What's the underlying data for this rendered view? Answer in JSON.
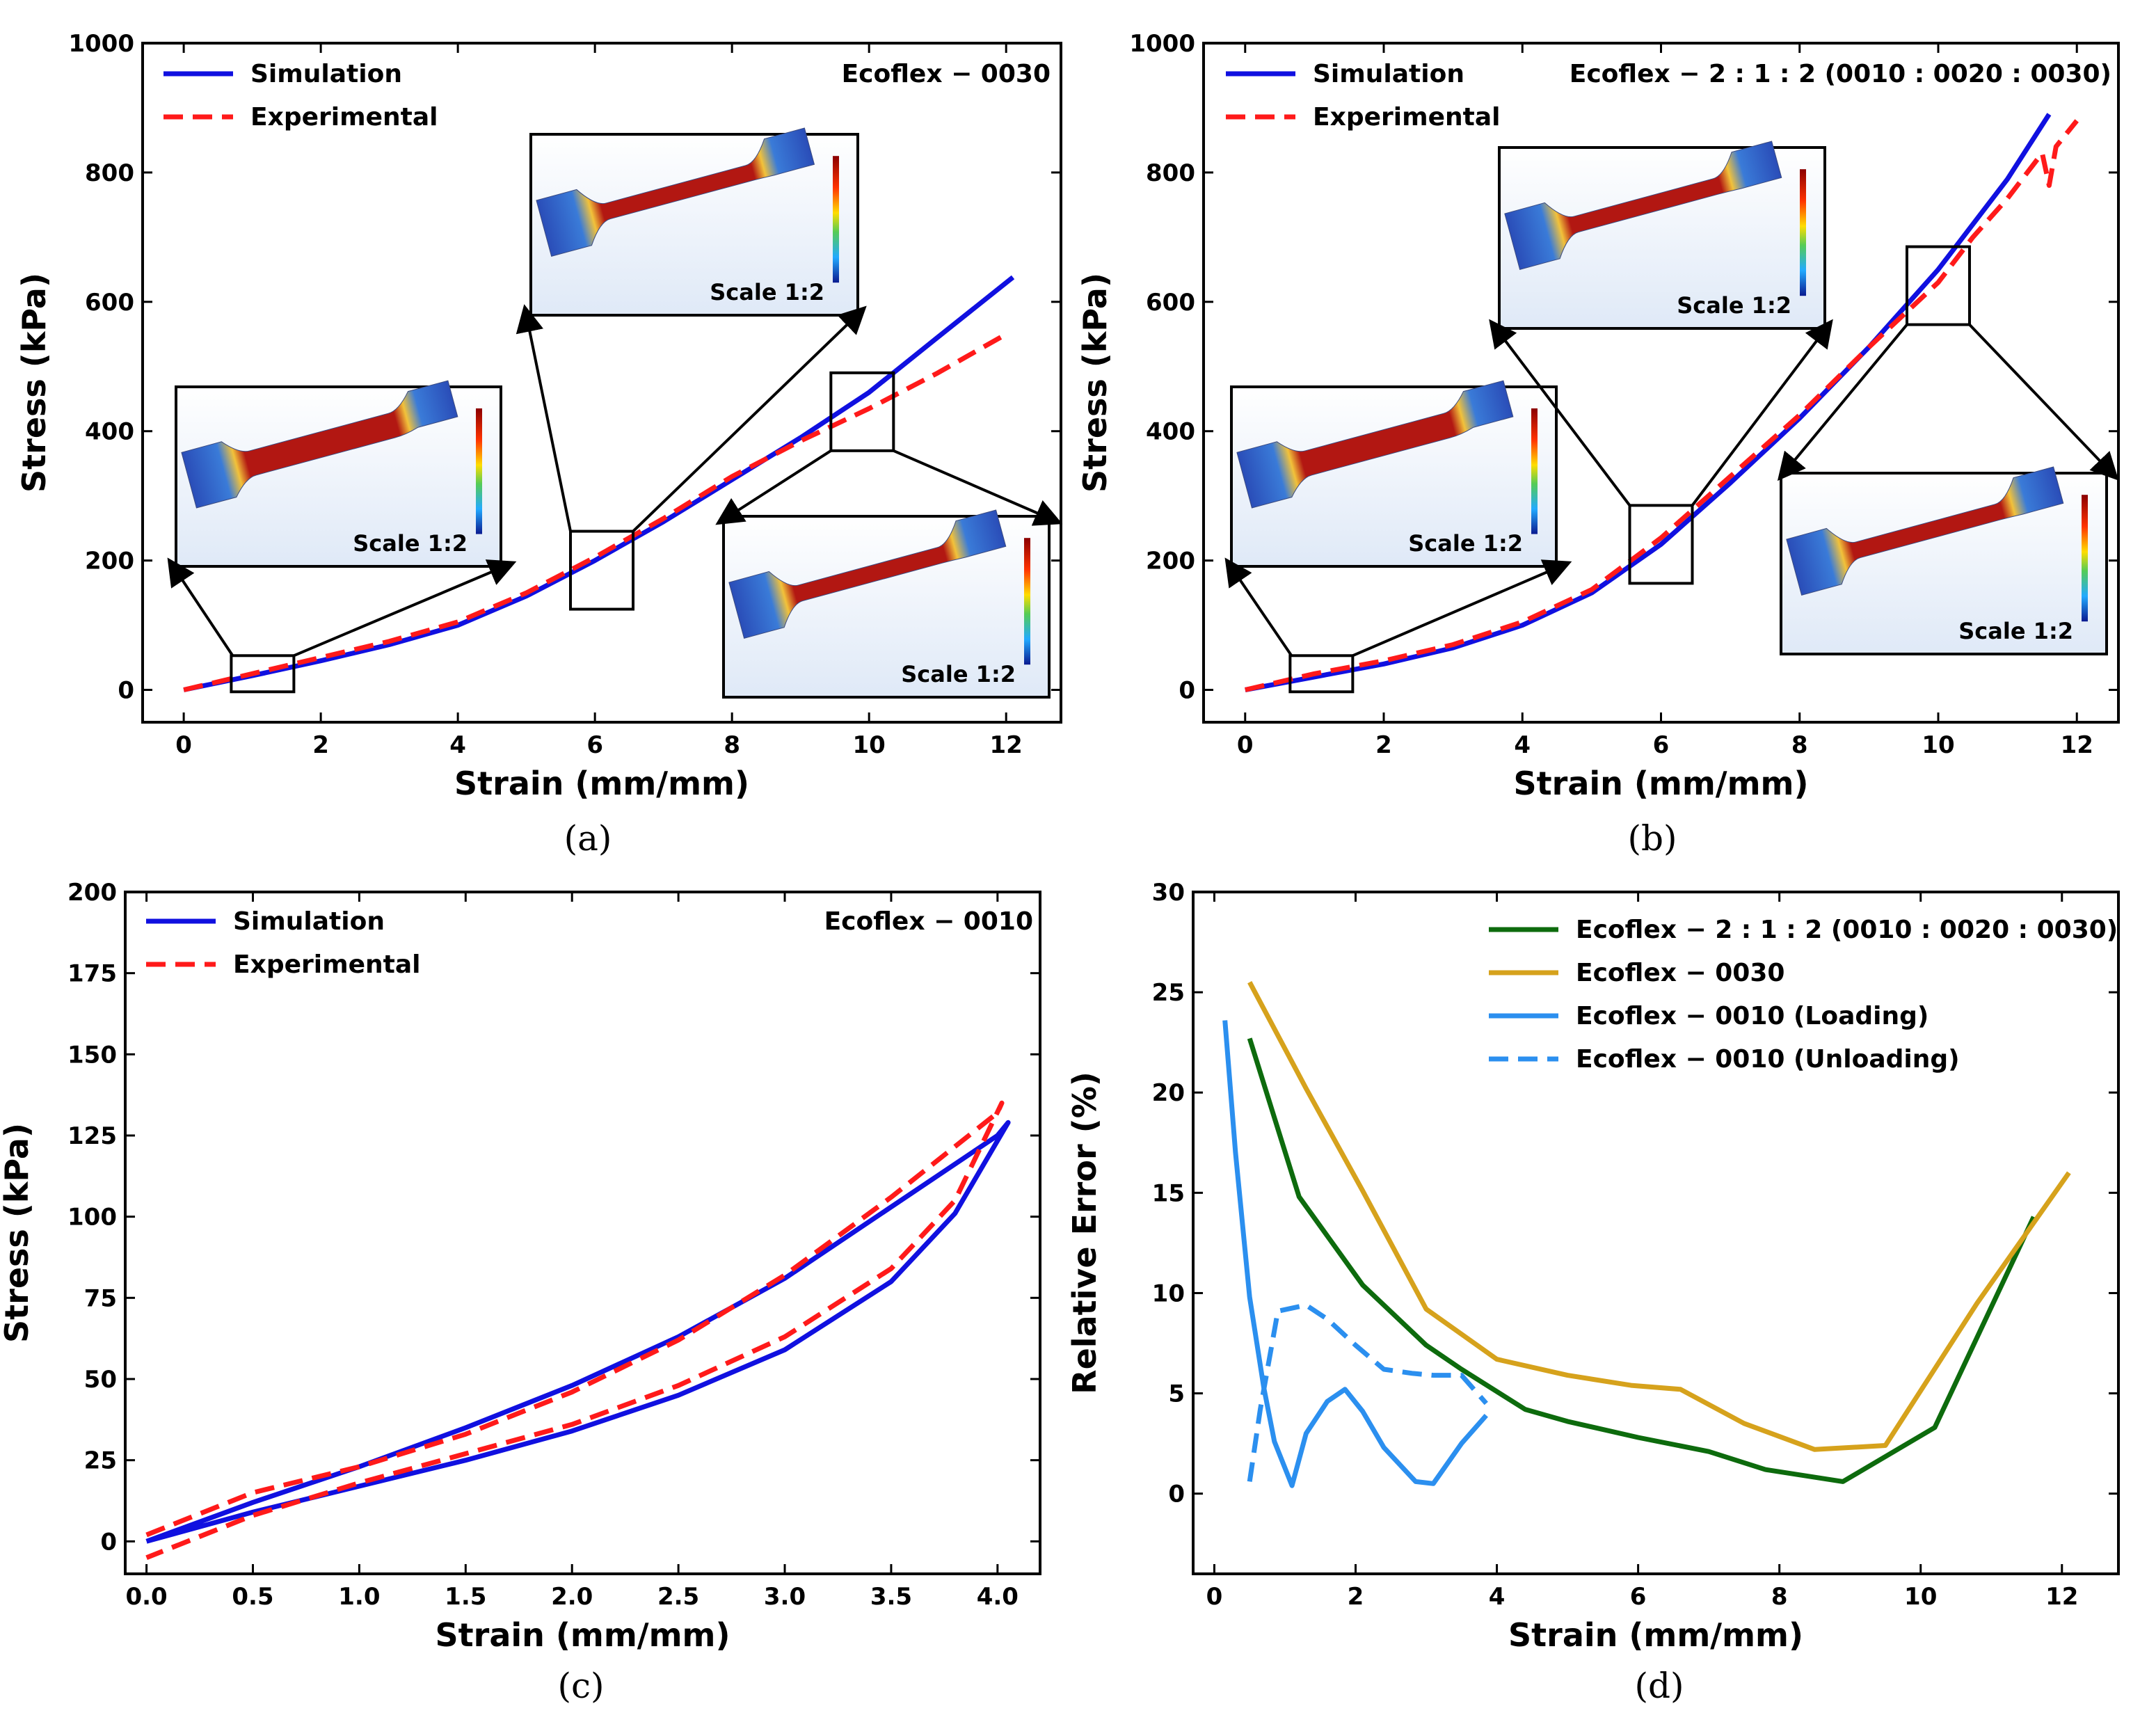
{
  "panels": [
    {
      "id": "a",
      "caption": "(a)"
    },
    {
      "id": "b",
      "caption": "(b)"
    },
    {
      "id": "c",
      "caption": "(c)"
    },
    {
      "id": "d",
      "caption": "(d)"
    }
  ],
  "insets": {
    "scale_label": "Scale 1:2"
  },
  "chart_data": [
    {
      "id": "a",
      "type": "line",
      "title": "",
      "annotation": "Ecoflex − 0030",
      "xlabel": "Strain (mm/mm)",
      "ylabel": "Stress (kPa)",
      "xlim": [
        -0.6,
        12.8
      ],
      "ylim": [
        -50,
        1000
      ],
      "xticks": [
        0,
        2,
        4,
        6,
        8,
        10,
        12
      ],
      "yticks": [
        0,
        200,
        400,
        600,
        800,
        1000
      ],
      "legend": "top-left",
      "series": [
        {
          "name": "Simulation",
          "color": "#1010e0",
          "style": "solid",
          "x": [
            0,
            1,
            2,
            3,
            4,
            5,
            6,
            7,
            8,
            9,
            10,
            11,
            12.1
          ],
          "y": [
            0,
            22,
            45,
            70,
            100,
            145,
            200,
            260,
            325,
            390,
            460,
            545,
            638
          ]
        },
        {
          "name": "Experimental",
          "color": "#ff1a1a",
          "style": "dashed",
          "x": [
            0,
            1,
            2,
            3,
            4,
            5,
            6,
            7,
            8,
            9,
            10,
            11,
            12
          ],
          "y": [
            0,
            25,
            50,
            75,
            105,
            150,
            205,
            265,
            330,
            385,
            435,
            490,
            550
          ]
        }
      ]
    },
    {
      "id": "b",
      "type": "line",
      "title": "",
      "annotation": "Ecoflex − 2 : 1 : 2 (0010 : 0020 : 0030)",
      "xlabel": "Strain (mm/mm)",
      "ylabel": "Stress (kPa)",
      "xlim": [
        -0.6,
        12.6
      ],
      "ylim": [
        -50,
        1000
      ],
      "xticks": [
        0,
        2,
        4,
        6,
        8,
        10,
        12
      ],
      "yticks": [
        0,
        200,
        400,
        600,
        800,
        1000
      ],
      "legend": "top-left",
      "series": [
        {
          "name": "Simulation",
          "color": "#1010e0",
          "style": "solid",
          "x": [
            0,
            1,
            2,
            3,
            4,
            5,
            6,
            7,
            8,
            9,
            10,
            11,
            11.6
          ],
          "y": [
            0,
            20,
            40,
            65,
            100,
            150,
            225,
            320,
            420,
            530,
            650,
            790,
            890
          ]
        },
        {
          "name": "Experimental",
          "color": "#ff1a1a",
          "style": "dashed",
          "x": [
            0,
            1,
            2,
            3,
            4,
            5,
            6,
            7,
            8,
            9,
            10,
            10.5,
            11,
            11.5,
            11.6,
            11.7,
            12
          ],
          "y": [
            0,
            25,
            45,
            70,
            105,
            155,
            235,
            330,
            425,
            530,
            630,
            700,
            760,
            830,
            780,
            840,
            880
          ]
        }
      ]
    },
    {
      "id": "c",
      "type": "line",
      "title": "",
      "annotation": "Ecoflex − 0010",
      "xlabel": "Strain (mm/mm)",
      "ylabel": "Stress (kPa)",
      "xlim": [
        -0.1,
        4.2
      ],
      "ylim": [
        -10,
        200
      ],
      "xticks": [
        0.0,
        0.5,
        1.0,
        1.5,
        2.0,
        2.5,
        3.0,
        3.5,
        4.0
      ],
      "yticks": [
        0,
        25,
        50,
        75,
        100,
        125,
        150,
        175,
        200
      ],
      "legend": "top-left",
      "series": [
        {
          "name": "Simulation",
          "color": "#1010e0",
          "style": "solid",
          "x": [
            0,
            0.5,
            1.0,
            1.5,
            2.0,
            2.5,
            3.0,
            3.5,
            4.0,
            4.05,
            3.8,
            3.5,
            3.0,
            2.5,
            2.0,
            1.5,
            1.0,
            0.5,
            0
          ],
          "y": [
            0,
            12,
            23,
            35,
            48,
            63,
            81,
            103,
            125,
            129,
            101,
            80,
            59,
            45,
            34,
            25,
            17,
            9,
            0
          ]
        },
        {
          "name": "Experimental",
          "color": "#ff1a1a",
          "style": "dashed",
          "x": [
            0,
            0.5,
            1.0,
            1.5,
            2.0,
            2.5,
            3.0,
            3.5,
            4.0,
            4.02,
            3.8,
            3.5,
            3.0,
            2.5,
            2.0,
            1.5,
            1.0,
            0.5,
            0
          ],
          "y": [
            2,
            15,
            23,
            33,
            46,
            62,
            82,
            106,
            132,
            135,
            105,
            84,
            63,
            48,
            36,
            27,
            18,
            8,
            -5
          ]
        }
      ]
    },
    {
      "id": "d",
      "type": "line",
      "title": "",
      "xlabel": "Strain (mm/mm)",
      "ylabel": "Relative Error (%)",
      "xlim": [
        -0.3,
        12.8
      ],
      "ylim": [
        -4,
        30
      ],
      "xticks": [
        0,
        2,
        4,
        6,
        8,
        10,
        12
      ],
      "yticks": [
        0,
        5,
        10,
        15,
        20,
        25,
        30
      ],
      "legend": "top-right",
      "series": [
        {
          "name": "Ecoflex − 2 : 1 : 2 (0010 : 0020 : 0030)",
          "color": "#0d6b0d",
          "style": "solid",
          "x": [
            0.5,
            1.2,
            2.1,
            3.0,
            3.5,
            4.4,
            5.0,
            6.0,
            7.0,
            7.8,
            8.9,
            10.2,
            11.6
          ],
          "y": [
            22.7,
            14.8,
            10.4,
            7.4,
            6.2,
            4.2,
            3.6,
            2.8,
            2.1,
            1.2,
            0.6,
            3.3,
            13.8
          ]
        },
        {
          "name": "Ecoflex − 0030",
          "color": "#d6a21c",
          "style": "solid",
          "x": [
            0.5,
            1.3,
            2.1,
            3.0,
            4.0,
            5.0,
            5.9,
            6.6,
            7.5,
            8.5,
            9.5,
            10.8,
            12.1
          ],
          "y": [
            25.5,
            20.2,
            15.1,
            9.2,
            6.7,
            5.9,
            5.4,
            5.2,
            3.5,
            2.2,
            2.4,
            9.5,
            16.0
          ]
        },
        {
          "name": "Ecoflex − 0010 (Loading)",
          "color": "#2b8fef",
          "style": "solid",
          "x": [
            0.15,
            0.3,
            0.5,
            0.7,
            0.85,
            1.1,
            1.3,
            1.6,
            1.85,
            2.1,
            2.4,
            2.85,
            3.1,
            3.5,
            3.85
          ],
          "y": [
            23.6,
            17.0,
            9.8,
            5.3,
            2.6,
            0.4,
            3.0,
            4.6,
            5.2,
            4.1,
            2.3,
            0.6,
            0.5,
            2.5,
            3.9
          ]
        },
        {
          "name": "Ecoflex − 0010 (Unloading)",
          "color": "#2b8fef",
          "style": "dashed",
          "x": [
            0.5,
            0.65,
            0.9,
            1.3,
            1.6,
            2.0,
            2.4,
            2.8,
            3.1,
            3.5,
            3.85
          ],
          "y": [
            0.6,
            4.2,
            9.1,
            9.4,
            8.7,
            7.4,
            6.2,
            6.0,
            5.9,
            5.9,
            4.5
          ]
        }
      ]
    }
  ]
}
